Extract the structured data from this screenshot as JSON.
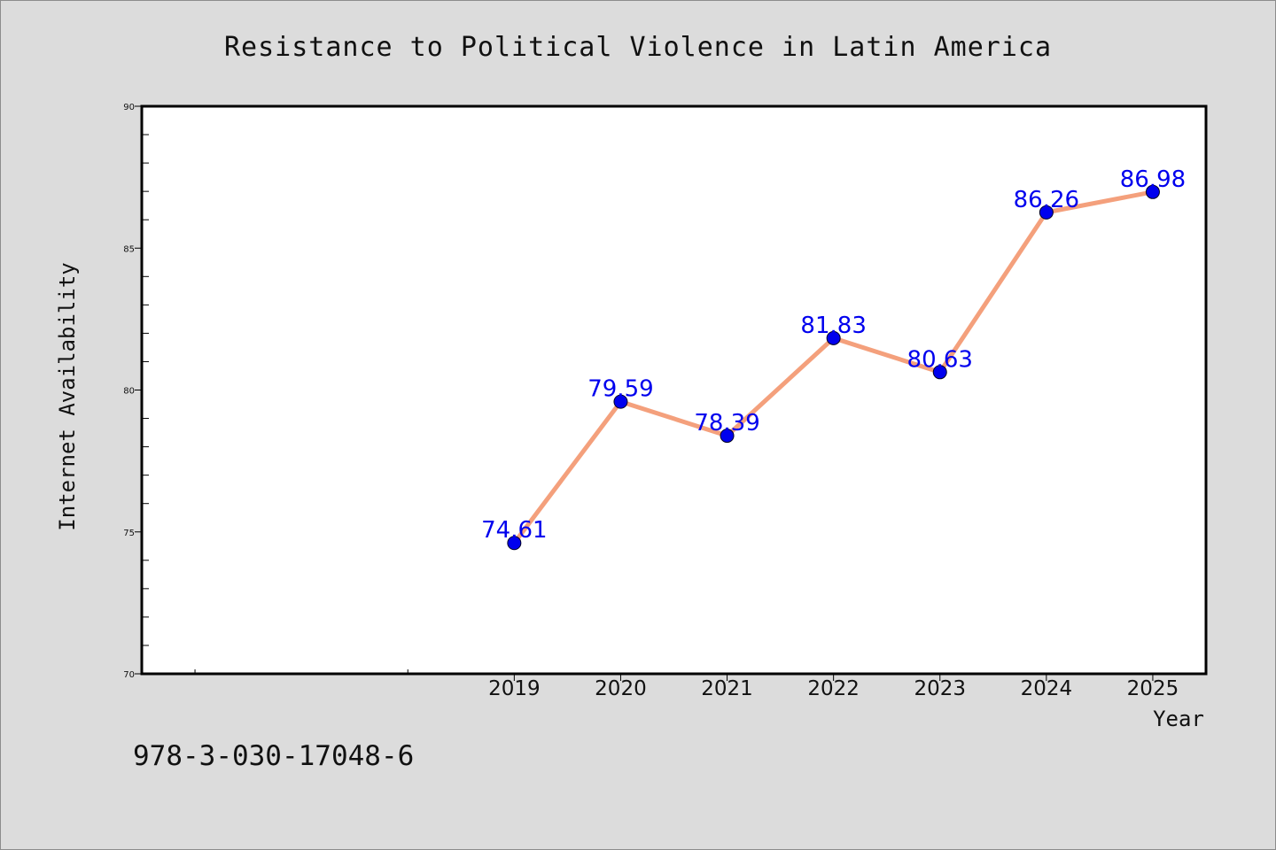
{
  "chart_data": {
    "type": "line",
    "title": "Resistance to Political Violence in Latin America",
    "xlabel": "Year",
    "ylabel": "Internet Availability",
    "x": [
      "2019",
      "2020",
      "2021",
      "2022",
      "2023",
      "2024",
      "2025"
    ],
    "series": [
      {
        "values": [
          74.61,
          79.59,
          78.39,
          81.83,
          80.63,
          86.26,
          86.98
        ],
        "labels": [
          "74.61",
          "79.59",
          "78.39",
          "81.83",
          "80.63",
          "86.26",
          "86.98"
        ],
        "line_color": "#f4a07c",
        "marker_color": "#0000ee"
      }
    ],
    "ylim": [
      70,
      90
    ],
    "yticks": [
      70,
      75,
      80,
      85,
      90
    ],
    "ytick_labels": [
      "70",
      "75",
      "80",
      "85",
      "90"
    ],
    "xlim": [
      2015.5,
      2025.5
    ],
    "grid": false,
    "label_color": "#0000ee"
  },
  "footer_text": "978-3-030-17048-6",
  "colors": {
    "background": "#dcdcdc",
    "plot_area": "#ffffff",
    "frame": "#000000"
  }
}
